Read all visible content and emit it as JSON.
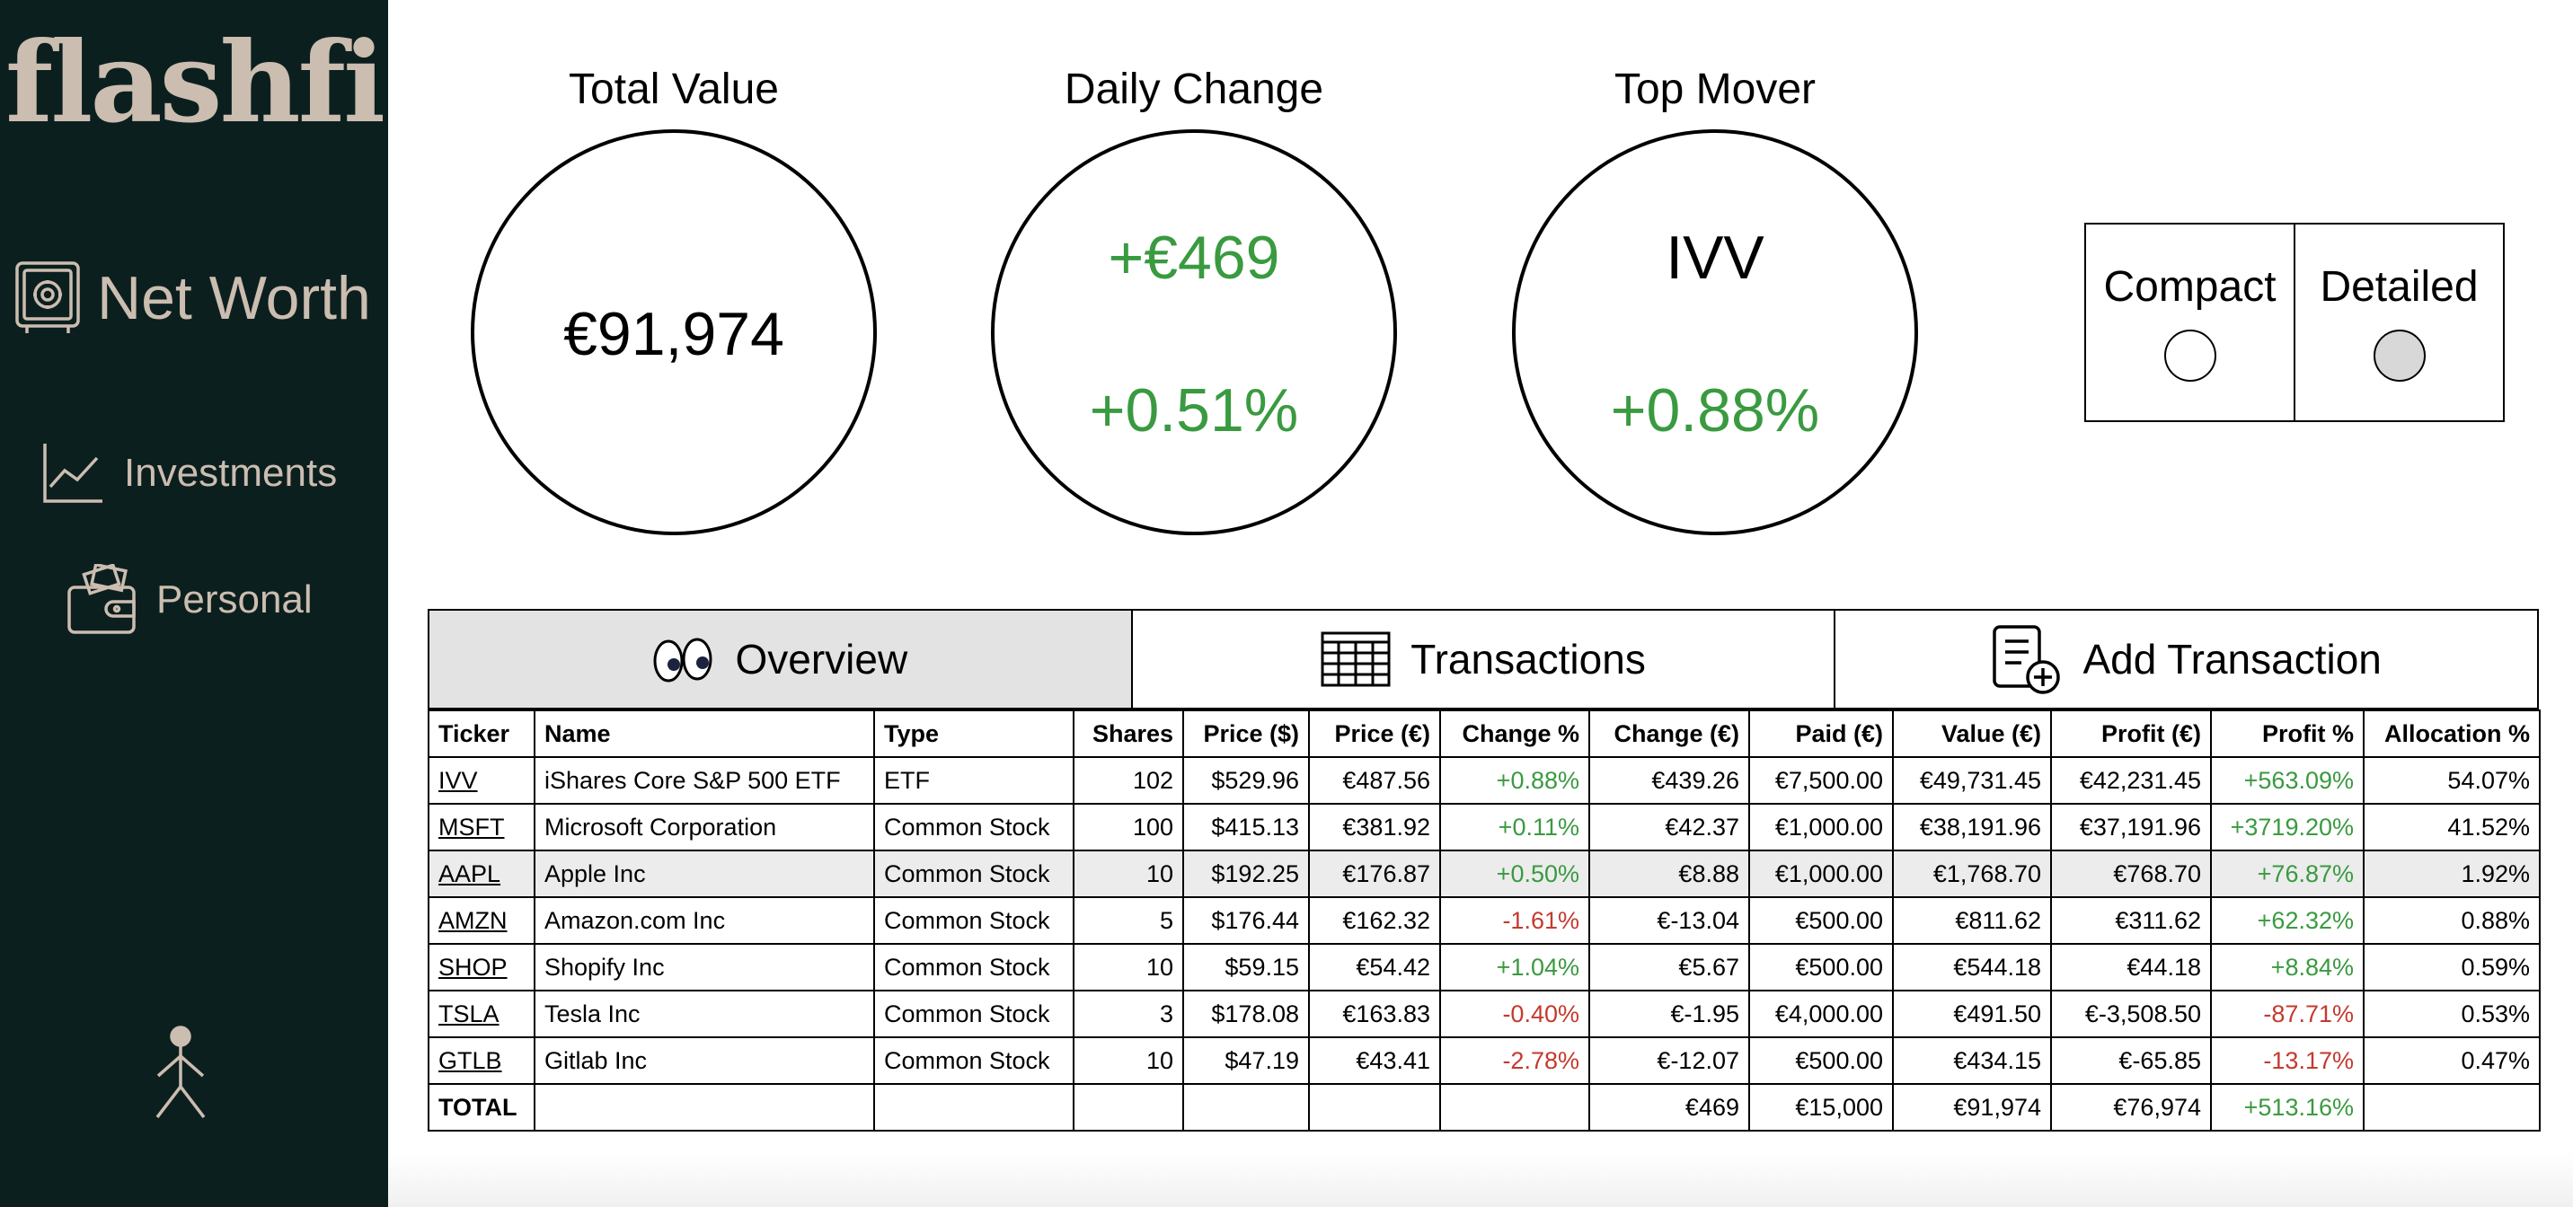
{
  "app": {
    "logo": "flashfi"
  },
  "sidebar": {
    "items": [
      {
        "label": "Net Worth",
        "icon": "safe-icon"
      },
      {
        "label": "Investments",
        "icon": "line-chart-icon"
      },
      {
        "label": "Personal",
        "icon": "wallet-icon"
      }
    ],
    "user_icon": "user-stick-figure-icon"
  },
  "stats": {
    "total": {
      "title": "Total Value",
      "value": "€91,974"
    },
    "daily": {
      "title": "Daily Change",
      "value": "+€469",
      "percent": "+0.51%"
    },
    "top": {
      "title": "Top Mover",
      "ticker": "IVV",
      "percent": "+0.88%"
    }
  },
  "view_toggle": {
    "options": [
      {
        "label": "Compact",
        "selected": false
      },
      {
        "label": "Detailed",
        "selected": true
      }
    ]
  },
  "tabs": [
    {
      "label": "Overview",
      "icon": "eyes-icon",
      "active": true
    },
    {
      "label": "Transactions",
      "icon": "spreadsheet-icon",
      "active": false
    },
    {
      "label": "Add Transaction",
      "icon": "document-add-icon",
      "active": false
    }
  ],
  "table": {
    "headers": [
      "Ticker",
      "Name",
      "Type",
      "Shares",
      "Price ($)",
      "Price (€)",
      "Change %",
      "Change (€)",
      "Paid (€)",
      "Value (€)",
      "Profit (€)",
      "Profit %",
      "Allocation %"
    ],
    "rows": [
      [
        "IVV",
        "iShares Core S&P 500 ETF",
        "ETF",
        "102",
        "$529.96",
        "€487.56",
        "+0.88%",
        "€439.26",
        "€7,500.00",
        "€49,731.45",
        "€42,231.45",
        "+563.09%",
        "54.07%"
      ],
      [
        "MSFT",
        "Microsoft Corporation",
        "Common Stock",
        "100",
        "$415.13",
        "€381.92",
        "+0.11%",
        "€42.37",
        "€1,000.00",
        "€38,191.96",
        "€37,191.96",
        "+3719.20%",
        "41.52%"
      ],
      [
        "AAPL",
        "Apple Inc",
        "Common Stock",
        "10",
        "$192.25",
        "€176.87",
        "+0.50%",
        "€8.88",
        "€1,000.00",
        "€1,768.70",
        "€768.70",
        "+76.87%",
        "1.92%"
      ],
      [
        "AMZN",
        "Amazon.com Inc",
        "Common Stock",
        "5",
        "$176.44",
        "€162.32",
        "-1.61%",
        "€-13.04",
        "€500.00",
        "€811.62",
        "€311.62",
        "+62.32%",
        "0.88%"
      ],
      [
        "SHOP",
        "Shopify Inc",
        "Common Stock",
        "10",
        "$59.15",
        "€54.42",
        "+1.04%",
        "€5.67",
        "€500.00",
        "€544.18",
        "€44.18",
        "+8.84%",
        "0.59%"
      ],
      [
        "TSLA",
        "Tesla Inc",
        "Common Stock",
        "3",
        "$178.08",
        "€163.83",
        "-0.40%",
        "€-1.95",
        "€4,000.00",
        "€491.50",
        "€-3,508.50",
        "-87.71%",
        "0.53%"
      ],
      [
        "GTLB",
        "Gitlab Inc",
        "Common Stock",
        "10",
        "$47.19",
        "€43.41",
        "-2.78%",
        "€-12.07",
        "€500.00",
        "€434.15",
        "€-65.85",
        "-13.17%",
        "0.47%"
      ]
    ],
    "total": [
      "TOTAL",
      "",
      "",
      "",
      "",
      "",
      "",
      "€469",
      "€15,000",
      "€91,974",
      "€76,974",
      "+513.16%",
      ""
    ]
  },
  "colors": {
    "sidebar_bg": "#0c1f1f",
    "sidebar_text": "#cbbdb0",
    "positive": "#3a9a40",
    "negative": "#c43a2e",
    "highlight_row": "#ececec"
  }
}
